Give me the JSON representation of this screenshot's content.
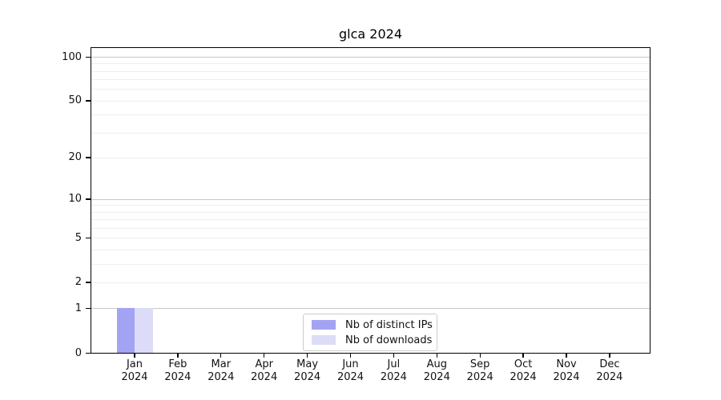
{
  "chart_data": {
    "type": "bar",
    "title": "glca 2024",
    "categories": [
      "Jan",
      "Feb",
      "Mar",
      "Apr",
      "May",
      "Jun",
      "Jul",
      "Aug",
      "Sep",
      "Oct",
      "Nov",
      "Dec"
    ],
    "category_year_label": "2024",
    "series": [
      {
        "name": "Nb of distinct IPs",
        "color": "#a3a3f3",
        "values": [
          1,
          0,
          0,
          0,
          0,
          0,
          0,
          0,
          0,
          0,
          0,
          0
        ]
      },
      {
        "name": "Nb of downloads",
        "color": "#dcdcf8",
        "values": [
          1,
          0,
          0,
          0,
          0,
          0,
          0,
          0,
          0,
          0,
          0,
          0
        ]
      }
    ],
    "yscale": "log10(value+1)",
    "ylim": [
      0,
      113
    ],
    "yticks": [
      100,
      50,
      20,
      10,
      5,
      2,
      1,
      0
    ],
    "major_gridlines": [
      1,
      10,
      100
    ],
    "minor_gridlines": [
      2,
      3,
      4,
      5,
      6,
      7,
      8,
      9,
      20,
      30,
      40,
      50,
      60,
      70,
      80,
      90
    ],
    "grid": true,
    "legend_position": "bottom-center"
  },
  "colors": {
    "axis": "#000000",
    "major_grid": "#c9c9c9",
    "minor_grid": "#efefef",
    "series_1": "#a3a3f3",
    "series_2": "#dcdcf8"
  }
}
